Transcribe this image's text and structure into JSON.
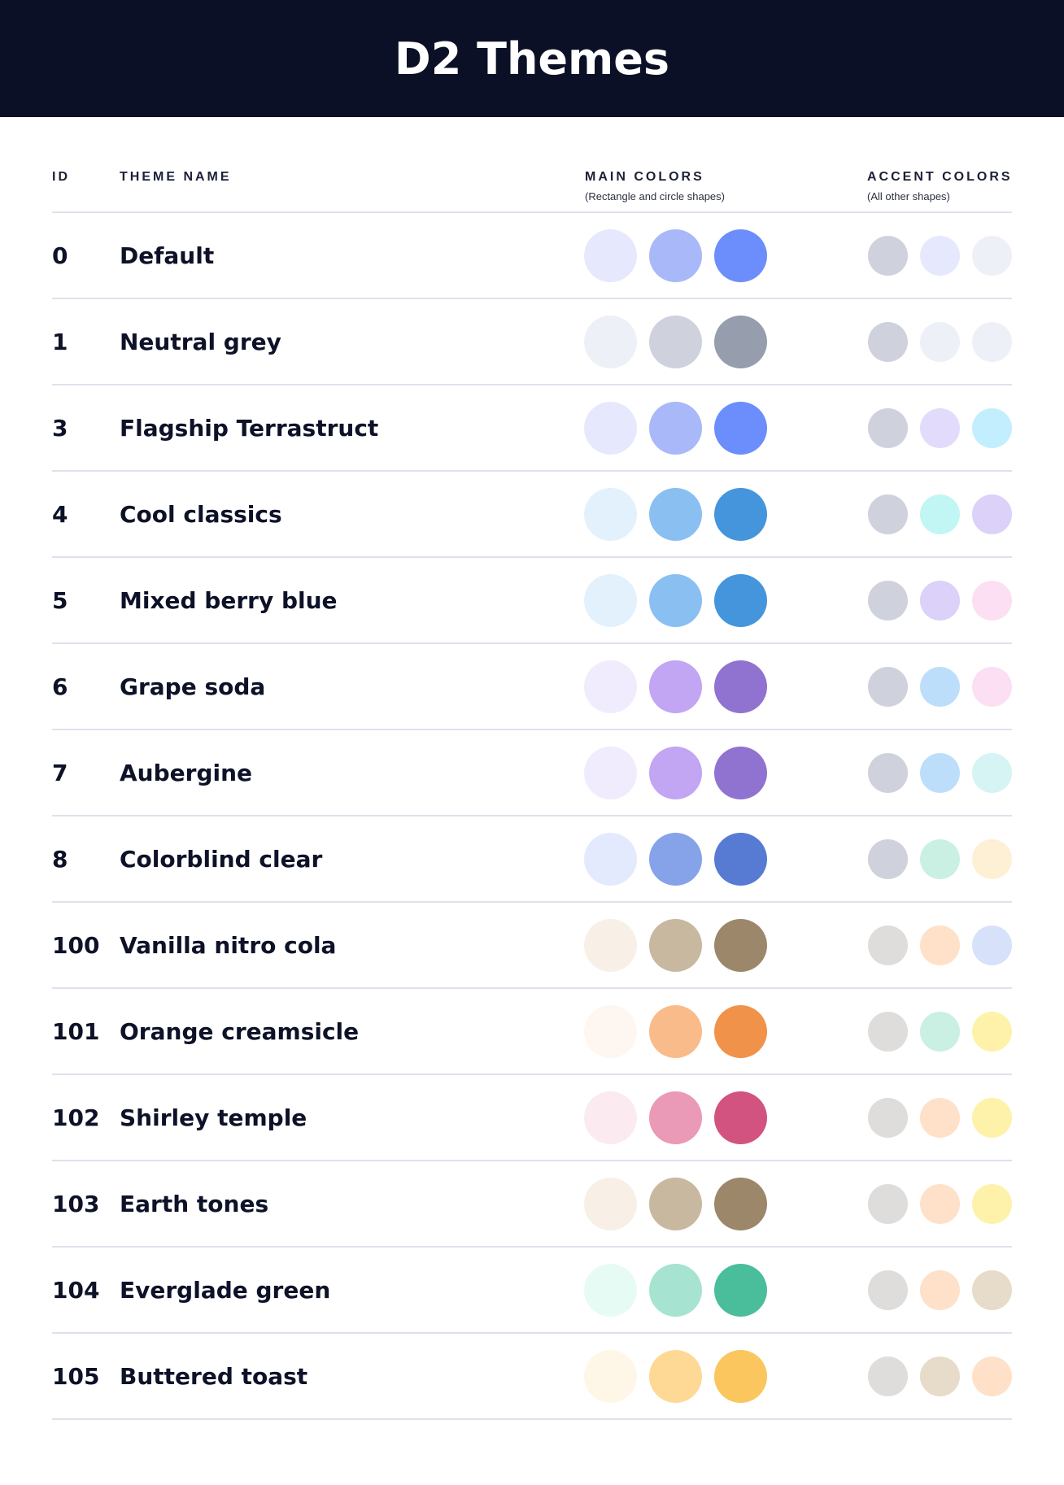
{
  "title": "D2 Themes",
  "columns": {
    "id": "ID",
    "name": "THEME NAME",
    "main": "MAIN COLORS",
    "main_sub": "(Rectangle and circle shapes)",
    "accent": "ACCENT COLORS",
    "accent_sub": "(All other shapes)"
  },
  "themes": [
    {
      "id": "0",
      "name": "Default",
      "main": [
        "#E6E9FD",
        "#A9B8F8",
        "#6C8DFC"
      ],
      "accent": [
        "#CFD2DD",
        "#E6E9FD",
        "#EDF0F7"
      ]
    },
    {
      "id": "1",
      "name": "Neutral grey",
      "main": [
        "#EDF0F7",
        "#CFD2DD",
        "#969DAD"
      ],
      "accent": [
        "#CFD2DD",
        "#EDF0F7",
        "#EDF0F7"
      ]
    },
    {
      "id": "3",
      "name": "Flagship Terrastruct",
      "main": [
        "#E6E9FD",
        "#A9B8F8",
        "#6C8DFC"
      ],
      "accent": [
        "#CFD2DD",
        "#E3DBFC",
        "#C3EEFD"
      ]
    },
    {
      "id": "4",
      "name": "Cool classics",
      "main": [
        "#E3F1FD",
        "#8ABFF2",
        "#4595DC"
      ],
      "accent": [
        "#CFD2DD",
        "#C1F6F5",
        "#DBD1F9"
      ]
    },
    {
      "id": "5",
      "name": "Mixed berry blue",
      "main": [
        "#E3F1FD",
        "#8ABFF2",
        "#4595DC"
      ],
      "accent": [
        "#CFD2DD",
        "#DBD1F9",
        "#FCDFF2"
      ]
    },
    {
      "id": "6",
      "name": "Grape soda",
      "main": [
        "#F0ECFD",
        "#C2A5F3",
        "#9073D0"
      ],
      "accent": [
        "#CFD2DD",
        "#BDDEFB",
        "#FCDFF2"
      ]
    },
    {
      "id": "7",
      "name": "Aubergine",
      "main": [
        "#F0ECFD",
        "#C2A5F3",
        "#9073D0"
      ],
      "accent": [
        "#CFD2DD",
        "#BDDEFB",
        "#D5F4F3"
      ]
    },
    {
      "id": "8",
      "name": "Colorblind clear",
      "main": [
        "#E4EAFD",
        "#86A3EA",
        "#577AD3"
      ],
      "accent": [
        "#CFD2DD",
        "#C9F0E3",
        "#FEF0D5"
      ]
    },
    {
      "id": "100",
      "name": "Vanilla nitro cola",
      "main": [
        "#F8F0E6",
        "#C9B8A0",
        "#9C876B"
      ],
      "accent": [
        "#DEDDDB",
        "#FEE1C8",
        "#D7E1FA"
      ]
    },
    {
      "id": "101",
      "name": "Orange creamsicle",
      "main": [
        "#FEF6F1",
        "#FABB8B",
        "#F1924A"
      ],
      "accent": [
        "#DEDDDB",
        "#C9F0E3",
        "#FEF2AA"
      ]
    },
    {
      "id": "102",
      "name": "Shirley temple",
      "main": [
        "#FBEBF1",
        "#EA9AB6",
        "#D2537F"
      ],
      "accent": [
        "#DEDDDB",
        "#FEE1C8",
        "#FEF2AA"
      ]
    },
    {
      "id": "103",
      "name": "Earth tones",
      "main": [
        "#F8F0E6",
        "#C9B8A0",
        "#9C876B"
      ],
      "accent": [
        "#DEDDDB",
        "#FEE1C8",
        "#FEF2AA"
      ]
    },
    {
      "id": "104",
      "name": "Everglade green",
      "main": [
        "#E6FBF3",
        "#A6E3D1",
        "#4ABE9B"
      ],
      "accent": [
        "#DEDDDB",
        "#FEE1C8",
        "#E7DBC9"
      ]
    },
    {
      "id": "105",
      "name": "Buttered toast",
      "main": [
        "#FEF7E8",
        "#FED995",
        "#FAC65D"
      ],
      "accent": [
        "#DEDDDB",
        "#E7DBC9",
        "#FEE1C8"
      ]
    }
  ]
}
